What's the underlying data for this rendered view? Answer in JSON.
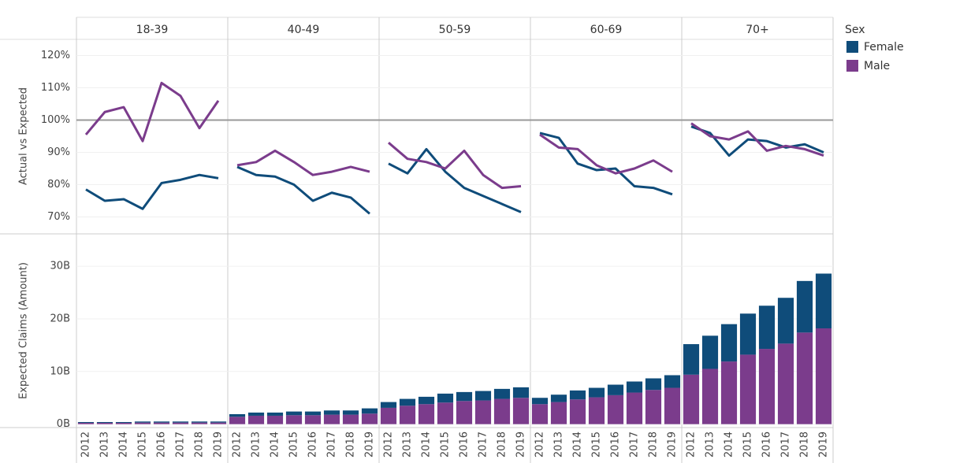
{
  "chart_data": {
    "type": "faceted",
    "facets": [
      "18-39",
      "40-49",
      "50-59",
      "60-69",
      "70+"
    ],
    "categories": [
      "2012",
      "2013",
      "2014",
      "2015",
      "2016",
      "2017",
      "2018",
      "2019"
    ],
    "legend_title": "Sex",
    "series": [
      {
        "name": "Female",
        "color": "#0f4c7a"
      },
      {
        "name": "Male",
        "color": "#7b3c8c"
      }
    ],
    "rows": [
      {
        "type": "line",
        "y_label": "Actual vs Expected",
        "ylim": [
          65,
          125
        ],
        "yticks": [
          {
            "value": 70,
            "label": "70%"
          },
          {
            "value": 80,
            "label": "80%"
          },
          {
            "value": 90,
            "label": "90%"
          },
          {
            "value": 100,
            "label": "100%"
          },
          {
            "value": 110,
            "label": "110%"
          },
          {
            "value": 120,
            "label": "120%"
          }
        ],
        "grid": true,
        "reference_line": 100,
        "values": [
          [
            [
              78.5,
              75,
              75.5,
              72.5,
              80.5,
              81.5,
              83,
              82
            ],
            [
              85.5,
              83,
              82.5,
              80,
              75,
              77.5,
              76,
              71
            ],
            [
              86.5,
              83.5,
              91,
              84,
              79,
              76.5,
              74,
              71.5
            ],
            [
              96,
              94.5,
              86.5,
              84.5,
              85,
              79.5,
              79,
              77
            ],
            [
              98,
              96,
              89,
              94,
              93.5,
              91.5,
              92.5,
              90
            ]
          ],
          [
            [
              95.5,
              102.5,
              104,
              93.5,
              111.5,
              107.5,
              97.5,
              106
            ],
            [
              86,
              87,
              90.5,
              87,
              83,
              84,
              85.5,
              84
            ],
            [
              93,
              88,
              87,
              85,
              90.5,
              83,
              79,
              79.5
            ],
            [
              95.5,
              91.5,
              91,
              86,
              83.5,
              85,
              87.5,
              84
            ],
            [
              99,
              95,
              94,
              96.5,
              90.5,
              92,
              91,
              89
            ]
          ]
        ]
      },
      {
        "type": "stacked-bar",
        "y_label": "Expected Claims (Amount)",
        "ylim": [
          -0.5,
          36
        ],
        "yticks": [
          {
            "value": 0,
            "label": "0B"
          },
          {
            "value": 10,
            "label": "10B"
          },
          {
            "value": 20,
            "label": "20B"
          },
          {
            "value": 30,
            "label": "30B"
          }
        ],
        "grid": true,
        "stack_order": "Male",
        "values": [
          [
            [
              0.15,
              0.15,
              0.15,
              0.2,
              0.2,
              0.2,
              0.2,
              0.2
            ],
            [
              0.5,
              0.6,
              0.6,
              0.7,
              0.7,
              0.8,
              0.8,
              1.0
            ],
            [
              1.1,
              1.3,
              1.4,
              1.7,
              1.7,
              1.8,
              1.9,
              2.0
            ],
            [
              1.2,
              1.4,
              1.7,
              1.8,
              2.0,
              2.1,
              2.2,
              2.4
            ],
            [
              5.8,
              6.3,
              7.1,
              7.8,
              8.2,
              8.7,
              9.8,
              10.4
            ]
          ],
          [
            [
              0.25,
              0.25,
              0.25,
              0.3,
              0.3,
              0.3,
              0.3,
              0.3
            ],
            [
              1.4,
              1.6,
              1.6,
              1.7,
              1.7,
              1.8,
              1.8,
              2.0
            ],
            [
              3.1,
              3.5,
              3.8,
              4.1,
              4.4,
              4.5,
              4.8,
              5.0
            ],
            [
              3.8,
              4.2,
              4.7,
              5.1,
              5.5,
              6.0,
              6.5,
              6.9
            ],
            [
              9.4,
              10.5,
              11.9,
              13.2,
              14.3,
              15.3,
              17.4,
              18.2
            ]
          ]
        ]
      }
    ]
  }
}
